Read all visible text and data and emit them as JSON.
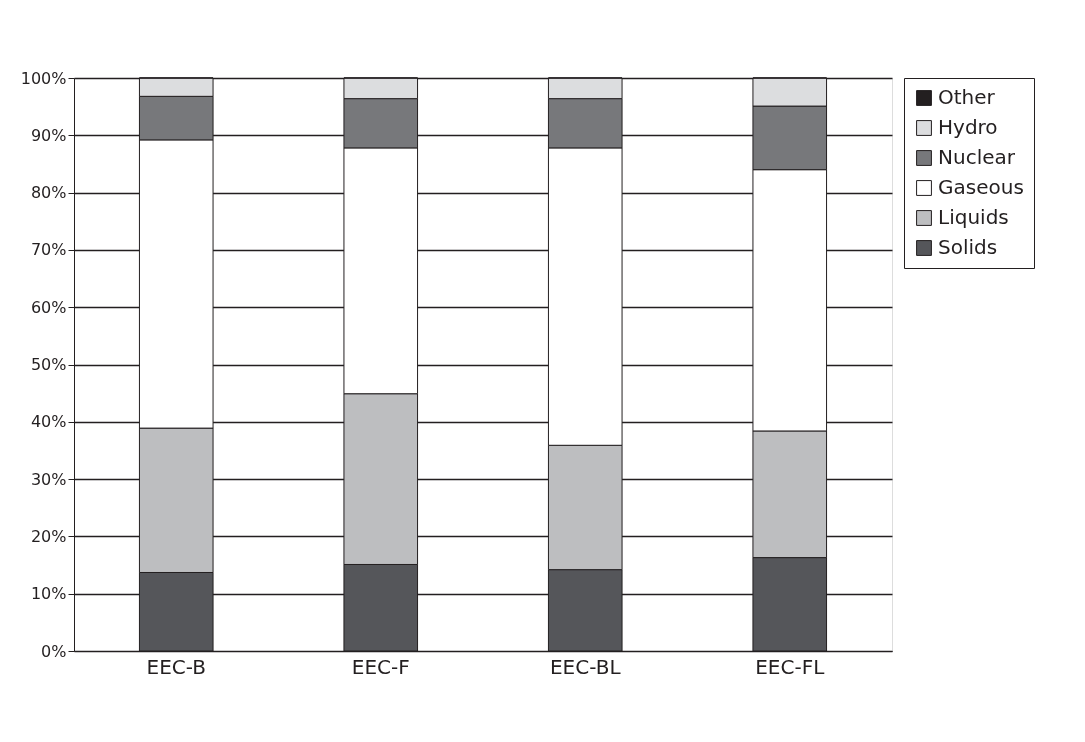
{
  "chart_data": {
    "type": "bar",
    "stacked": true,
    "categories": [
      "EEC-B",
      "EEC-F",
      "EEC-BL",
      "EEC-FL"
    ],
    "series": [
      {
        "name": "Solids",
        "color": "#55565a",
        "values": [
          13.7,
          15.1,
          14.2,
          16.3
        ]
      },
      {
        "name": "Liquids",
        "color": "#bdbec0",
        "values": [
          25.2,
          29.8,
          21.7,
          22.1
        ]
      },
      {
        "name": "Gaseous",
        "color": "#ffffff",
        "values": [
          50.3,
          42.9,
          51.9,
          45.6
        ]
      },
      {
        "name": "Nuclear",
        "color": "#77787b",
        "values": [
          7.6,
          8.6,
          8.6,
          11.1
        ]
      },
      {
        "name": "Hydro",
        "color": "#dcdddf",
        "values": [
          3.2,
          3.6,
          3.6,
          4.9
        ]
      },
      {
        "name": "Other",
        "color": "#231f20",
        "values": [
          0,
          0,
          0,
          0
        ]
      }
    ],
    "ylim": [
      0,
      100
    ],
    "yticks": [
      {
        "value": 0,
        "label": "0%"
      },
      {
        "value": 10,
        "label": "10%"
      },
      {
        "value": 20,
        "label": "20%"
      },
      {
        "value": 30,
        "label": "30%"
      },
      {
        "value": 40,
        "label": "40%"
      },
      {
        "value": 50,
        "label": "50%"
      },
      {
        "value": 60,
        "label": "60%"
      },
      {
        "value": 70,
        "label": "70%"
      },
      {
        "value": 80,
        "label": "80%"
      },
      {
        "value": 90,
        "label": "90%"
      },
      {
        "value": 100,
        "label": "100%"
      }
    ],
    "grid": "y",
    "legend": "right"
  }
}
